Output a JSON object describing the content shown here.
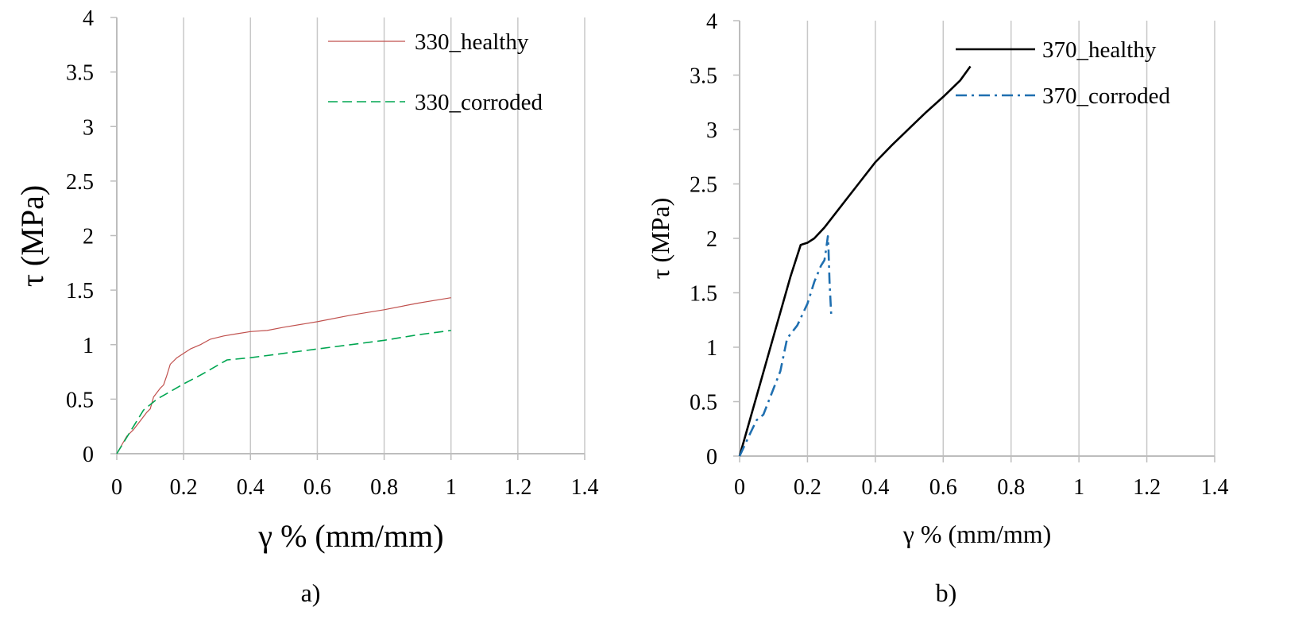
{
  "chart_data": [
    {
      "panel_label": "a)",
      "type": "line",
      "xlabel": "γ % (mm/mm)",
      "ylabel": "τ (MPa)",
      "xlim": [
        0,
        1.4
      ],
      "ylim": [
        0,
        4
      ],
      "xticks": [
        "0",
        "0.2",
        "0.4",
        "0.6",
        "0.8",
        "1",
        "1.2",
        "1.4"
      ],
      "yticks": [
        "0",
        "0.5",
        "1",
        "1.5",
        "2",
        "2.5",
        "3",
        "3.5",
        "4"
      ],
      "grid": "vertical",
      "legend_position": "top-right",
      "series": [
        {
          "name": "330_healthy",
          "color": "#c0504d",
          "style": "solid",
          "points": [
            [
              0,
              0
            ],
            [
              0.03,
              0.16
            ],
            [
              0.05,
              0.22
            ],
            [
              0.07,
              0.3
            ],
            [
              0.09,
              0.38
            ],
            [
              0.1,
              0.41
            ],
            [
              0.11,
              0.52
            ],
            [
              0.13,
              0.6
            ],
            [
              0.14,
              0.63
            ],
            [
              0.15,
              0.72
            ],
            [
              0.16,
              0.82
            ],
            [
              0.18,
              0.88
            ],
            [
              0.2,
              0.92
            ],
            [
              0.22,
              0.96
            ],
            [
              0.25,
              1.0
            ],
            [
              0.28,
              1.05
            ],
            [
              0.32,
              1.08
            ],
            [
              0.36,
              1.1
            ],
            [
              0.4,
              1.12
            ],
            [
              0.45,
              1.13
            ],
            [
              0.5,
              1.16
            ],
            [
              0.6,
              1.21
            ],
            [
              0.7,
              1.27
            ],
            [
              0.8,
              1.32
            ],
            [
              0.9,
              1.38
            ],
            [
              1.0,
              1.43
            ]
          ]
        },
        {
          "name": "330_corroded",
          "color": "#00a651",
          "style": "dashed",
          "points": [
            [
              0,
              0
            ],
            [
              0.04,
              0.2
            ],
            [
              0.08,
              0.4
            ],
            [
              0.12,
              0.5
            ],
            [
              0.16,
              0.57
            ],
            [
              0.2,
              0.64
            ],
            [
              0.25,
              0.72
            ],
            [
              0.33,
              0.86
            ],
            [
              0.4,
              0.88
            ],
            [
              0.5,
              0.92
            ],
            [
              0.6,
              0.96
            ],
            [
              0.7,
              1.0
            ],
            [
              0.8,
              1.04
            ],
            [
              0.9,
              1.09
            ],
            [
              1.0,
              1.13
            ]
          ]
        }
      ]
    },
    {
      "panel_label": "b)",
      "type": "line",
      "xlabel": "γ % (mm/mm)",
      "ylabel": "τ (MPa)",
      "xlim": [
        0,
        1.4
      ],
      "ylim": [
        0,
        4
      ],
      "xticks": [
        "0",
        "0.2",
        "0.4",
        "0.6",
        "0.8",
        "1",
        "1.2",
        "1.4"
      ],
      "yticks": [
        "0",
        "0.5",
        "1",
        "1.5",
        "2",
        "2.5",
        "3",
        "3.5",
        "4"
      ],
      "grid": "vertical",
      "legend_position": "top-right",
      "series": [
        {
          "name": "370_healthy",
          "color": "#000000",
          "style": "solid",
          "points": [
            [
              0,
              0
            ],
            [
              0.05,
              0.55
            ],
            [
              0.1,
              1.1
            ],
            [
              0.15,
              1.65
            ],
            [
              0.18,
              1.94
            ],
            [
              0.2,
              1.96
            ],
            [
              0.22,
              2.0
            ],
            [
              0.25,
              2.1
            ],
            [
              0.3,
              2.3
            ],
            [
              0.35,
              2.5
            ],
            [
              0.4,
              2.7
            ],
            [
              0.45,
              2.86
            ],
            [
              0.5,
              3.01
            ],
            [
              0.55,
              3.16
            ],
            [
              0.6,
              3.3
            ],
            [
              0.65,
              3.45
            ],
            [
              0.68,
              3.58
            ]
          ]
        },
        {
          "name": "370_corroded",
          "color": "#1f6fb0",
          "style": "dashdot",
          "points": [
            [
              0,
              0
            ],
            [
              0.03,
              0.2
            ],
            [
              0.05,
              0.33
            ],
            [
              0.07,
              0.38
            ],
            [
              0.1,
              0.62
            ],
            [
              0.12,
              0.78
            ],
            [
              0.14,
              1.08
            ],
            [
              0.17,
              1.2
            ],
            [
              0.2,
              1.4
            ],
            [
              0.22,
              1.6
            ],
            [
              0.24,
              1.75
            ],
            [
              0.25,
              1.8
            ],
            [
              0.255,
              1.9
            ],
            [
              0.26,
              2.02
            ],
            [
              0.262,
              1.9
            ],
            [
              0.265,
              1.6
            ],
            [
              0.27,
              1.3
            ]
          ]
        }
      ]
    }
  ]
}
